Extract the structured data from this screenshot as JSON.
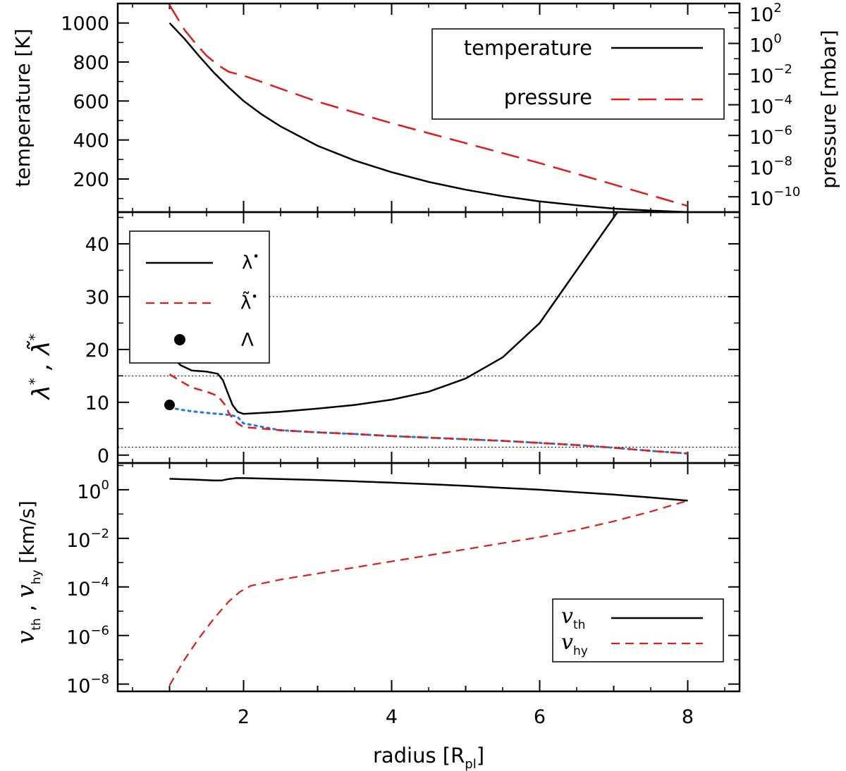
{
  "colors": {
    "black": "#000000",
    "red": "#e41a1c",
    "blue": "#1f78e6",
    "gridline": "#000000"
  },
  "chart_data": [
    {
      "id": "temperature-pressure",
      "type": "line",
      "xlim": [
        0.3,
        8.7
      ],
      "ylim": [
        30,
        1100
      ],
      "y2lim_log10": [
        -11.0,
        2.6
      ],
      "y2_log": true,
      "ylabel": "temperature [K]",
      "y2label": "pressure [mbar]",
      "yticks": [
        200,
        400,
        600,
        800,
        1000
      ],
      "y2ticks": [
        {
          "base": "10",
          "exp": "2",
          "value": 2
        },
        {
          "base": "10",
          "exp": "0",
          "value": 0
        },
        {
          "base": "10",
          "exp": "−2",
          "value": -2
        },
        {
          "base": "10",
          "exp": "−4",
          "value": -4
        },
        {
          "base": "10",
          "exp": "−6",
          "value": -6
        },
        {
          "base": "10",
          "exp": "−8",
          "value": -8
        },
        {
          "base": "10",
          "exp": "−10",
          "value": -10
        }
      ],
      "legend": {
        "placement": "top-right",
        "entries": [
          "temperature",
          "pressure"
        ]
      },
      "series": [
        {
          "name": "temperature",
          "axis": "left",
          "color": "#000000",
          "style": "solid",
          "x": [
            1.0,
            1.2,
            1.4,
            1.6,
            1.8,
            2.0,
            2.25,
            2.5,
            3.0,
            3.5,
            4.0,
            4.5,
            5.0,
            5.5,
            6.0,
            6.5,
            7.0,
            7.5,
            8.0
          ],
          "y": [
            1000,
            920,
            830,
            745,
            670,
            600,
            530,
            470,
            370,
            295,
            235,
            185,
            145,
            112,
            85,
            65,
            48,
            38,
            30
          ]
        },
        {
          "name": "pressure",
          "axis": "right",
          "color": "#e41a1c",
          "style": "dashed",
          "x": [
            1.0,
            1.1,
            1.2,
            1.35,
            1.5,
            1.65,
            1.8,
            2.0,
            3.0,
            4.0,
            5.0,
            6.0,
            7.0,
            8.0
          ],
          "y_log10": [
            2.5,
            1.7,
            0.9,
            0.0,
            -0.8,
            -1.4,
            -1.85,
            -2.1,
            -3.8,
            -5.2,
            -6.5,
            -7.8,
            -9.2,
            -10.6
          ]
        }
      ]
    },
    {
      "id": "lambda",
      "type": "line",
      "xlim": [
        0.3,
        8.7
      ],
      "ylim": [
        -1.5,
        46
      ],
      "ylabel": "λ*, λ̃*",
      "yticks": [
        0,
        10,
        20,
        30,
        40
      ],
      "hlines": [
        1.5,
        15,
        30
      ],
      "legend": {
        "placement": "top-left",
        "entries": [
          "λ*",
          "λ̃*",
          "Λ"
        ]
      },
      "series": [
        {
          "name": "λ*",
          "color": "#000000",
          "style": "solid",
          "x": [
            1.0,
            1.15,
            1.3,
            1.5,
            1.65,
            1.72,
            1.78,
            1.85,
            1.92,
            2.0,
            2.5,
            3.0,
            3.5,
            4.0,
            4.5,
            5.0,
            5.5,
            6.0,
            6.5,
            6.8,
            7.05
          ],
          "y": [
            19,
            17,
            16,
            15.8,
            15.4,
            14.2,
            12,
            9.5,
            8.2,
            7.8,
            8.2,
            8.8,
            9.5,
            10.5,
            12,
            14.5,
            18.5,
            25,
            35,
            41,
            46
          ]
        },
        {
          "name": "λ̃*",
          "color": "#e41a1c",
          "style": "dashed",
          "x": [
            1.0,
            1.15,
            1.3,
            1.5,
            1.65,
            1.75,
            1.8,
            1.85,
            1.92,
            2.0,
            2.5,
            3.0,
            3.5,
            4.0,
            4.5,
            5.0,
            5.5,
            6.0,
            6.5,
            7.0,
            7.5,
            8.0
          ],
          "y": [
            15.3,
            14,
            12.8,
            12,
            11.2,
            9.5,
            8,
            7,
            6,
            5.3,
            4.7,
            4.3,
            4,
            3.6,
            3.3,
            3,
            2.7,
            2.3,
            1.9,
            1.4,
            0.8,
            0.3
          ]
        },
        {
          "name": "blue-dotted",
          "color": "#1f78e6",
          "style": "dotted",
          "x": [
            1.0,
            1.15,
            1.3,
            1.5,
            1.65,
            1.75,
            1.8,
            1.85,
            1.92,
            2.0,
            2.5,
            3.0,
            3.5,
            4.0,
            4.5,
            5.0,
            5.5,
            6.0,
            6.5,
            7.0,
            7.5,
            8.0
          ],
          "y": [
            9,
            8.6,
            8.3,
            8,
            7.8,
            7.7,
            7.6,
            7.5,
            7.2,
            6,
            4.7,
            4.3,
            4,
            3.6,
            3.3,
            3,
            2.7,
            2.3,
            1.9,
            1.4,
            0.8,
            0.3
          ]
        }
      ],
      "points": [
        {
          "name": "Λ",
          "x": 1.0,
          "y": 9.5,
          "color": "#000000"
        }
      ]
    },
    {
      "id": "velocities",
      "type": "line",
      "xlim": [
        0.3,
        8.7
      ],
      "ylim_log10": [
        -8.3,
        1.1
      ],
      "y_log": true,
      "xlabel": "radius [R_pl]",
      "ylabel": "v_th , v_hy [km/s]",
      "xticks": [
        2,
        4,
        6,
        8
      ],
      "yticks": [
        {
          "base": "10",
          "exp": "0",
          "value": 0
        },
        {
          "base": "10",
          "exp": "−2",
          "value": -2
        },
        {
          "base": "10",
          "exp": "−4",
          "value": -4
        },
        {
          "base": "10",
          "exp": "−6",
          "value": -6
        },
        {
          "base": "10",
          "exp": "−8",
          "value": -8
        }
      ],
      "legend": {
        "placement": "bottom-right",
        "entries": [
          "v_th",
          "v_hy"
        ]
      },
      "series": [
        {
          "name": "v_th",
          "color": "#000000",
          "style": "solid",
          "x": [
            1.0,
            1.3,
            1.6,
            1.7,
            1.8,
            1.9,
            2.0,
            2.5,
            3.0,
            3.5,
            4.0,
            4.5,
            5.0,
            5.5,
            6.0,
            6.5,
            7.0,
            7.5,
            8.0
          ],
          "y_log10": [
            0.45,
            0.42,
            0.38,
            0.38,
            0.44,
            0.48,
            0.48,
            0.44,
            0.4,
            0.35,
            0.29,
            0.23,
            0.16,
            0.08,
            0.0,
            -0.1,
            -0.2,
            -0.32,
            -0.45
          ]
        },
        {
          "name": "v_hy",
          "color": "#e41a1c",
          "style": "dashed",
          "x": [
            1.0,
            1.2,
            1.4,
            1.6,
            1.8,
            1.95,
            2.1,
            2.5,
            3.0,
            3.5,
            4.0,
            4.5,
            5.0,
            5.5,
            6.0,
            6.5,
            7.0,
            7.5,
            8.0
          ],
          "y_log10": [
            -8.05,
            -7.0,
            -6.1,
            -5.3,
            -4.6,
            -4.2,
            -3.95,
            -3.7,
            -3.45,
            -3.2,
            -2.95,
            -2.7,
            -2.45,
            -2.2,
            -1.95,
            -1.65,
            -1.3,
            -0.9,
            -0.45
          ]
        }
      ]
    }
  ]
}
